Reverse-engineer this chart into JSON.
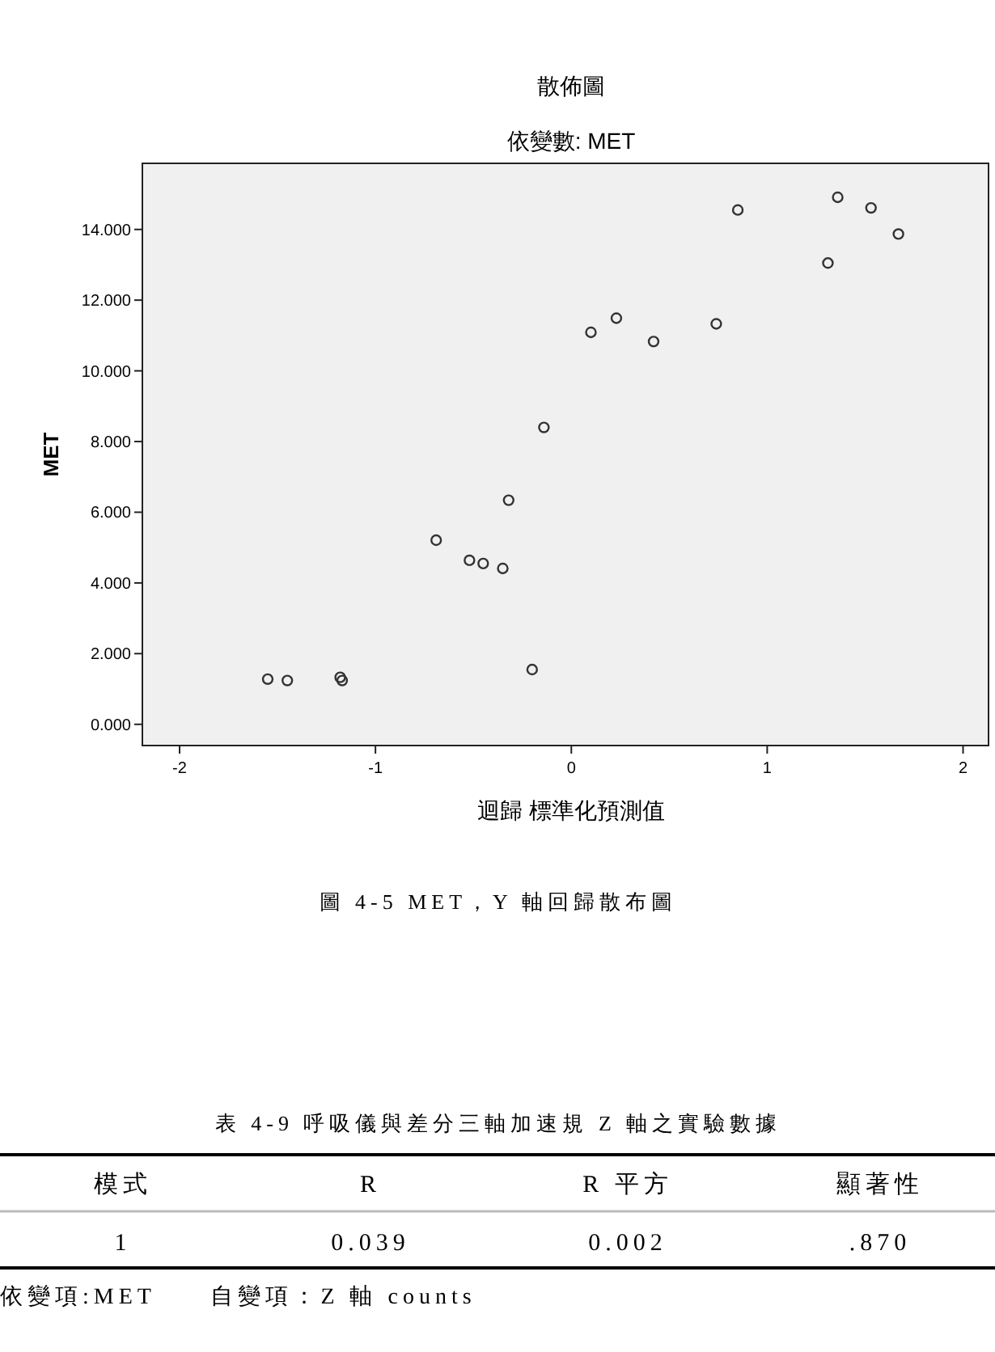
{
  "chart_data": [
    {
      "type": "scatter",
      "title": "散佈圖",
      "subtitle": "依變數: MET",
      "xlabel": "迴歸 標準化預測值",
      "ylabel": "MET",
      "marker": "circle",
      "series": [
        {
          "color": "#333333",
          "x": [
            -1.55,
            -1.45,
            -1.18,
            -1.17,
            -0.69,
            -0.52,
            -0.45,
            -0.35,
            -0.32,
            -0.2,
            -0.14,
            0.1,
            0.23,
            0.42,
            0.74,
            0.85,
            1.31,
            1.36,
            1.53,
            1.67
          ],
          "values": [
            1.28,
            1.24,
            1.33,
            1.24,
            5.21,
            4.64,
            4.55,
            4.41,
            6.34,
            1.55,
            8.4,
            11.09,
            11.49,
            10.83,
            11.33,
            14.55,
            13.05,
            14.91,
            14.61,
            13.87
          ]
        }
      ],
      "xlim": [
        -2.19,
        2.13
      ],
      "xticks": [
        -2,
        -1,
        0,
        1,
        2
      ],
      "ylim": [
        -0.6,
        15.87
      ],
      "yticks": [
        {
          "value": 0,
          "label": "0.000"
        },
        {
          "value": 2,
          "label": "2.000"
        },
        {
          "value": 4,
          "label": "4.000"
        },
        {
          "value": 6,
          "label": "6.000"
        },
        {
          "value": 8,
          "label": "8.000"
        },
        {
          "value": 10,
          "label": "10.000"
        },
        {
          "value": 12,
          "label": "12.000"
        },
        {
          "value": 14,
          "label": "14.000"
        }
      ],
      "annotations": [
        "圖 4-5 MET，Y 軸回歸散布圖"
      ]
    },
    {
      "type": "other",
      "title": "表 4-9 呼吸儀與差分三軸加速規 Z 軸之實驗數據",
      "annotations": [
        "模式",
        "R",
        "R 平方",
        "顯著性",
        "1",
        "0.039",
        "0.002",
        ".870",
        "依變項:MET　　自變項：Z 軸 counts"
      ]
    }
  ]
}
